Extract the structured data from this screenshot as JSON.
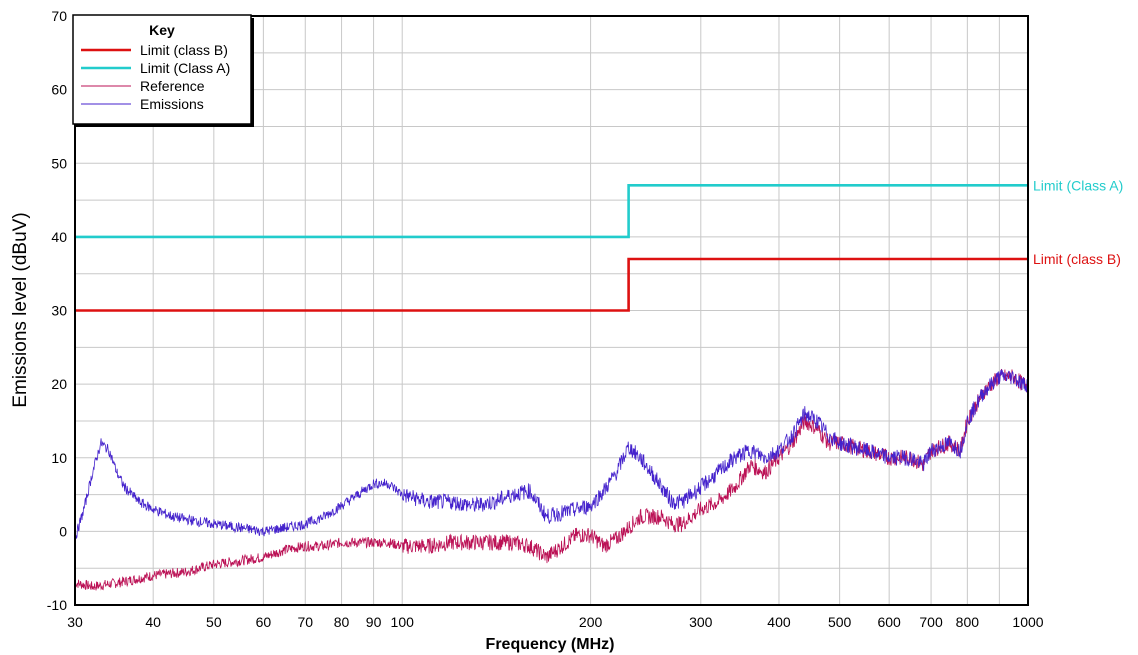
{
  "chart_data": {
    "type": "line",
    "xlabel": "Frequency (MHz)",
    "ylabel": "Emissions level (dBuV)",
    "x_scale": "log",
    "xlim": [
      30,
      1000
    ],
    "ylim": [
      -10,
      70
    ],
    "grid": true,
    "x_ticks": [
      30,
      40,
      50,
      60,
      70,
      80,
      90,
      100,
      200,
      300,
      400,
      500,
      600,
      700,
      800,
      1000
    ],
    "x_tick_labels": [
      "30",
      "40",
      "50",
      "60",
      "70",
      "80",
      "90",
      "100",
      "200",
      "300",
      "400",
      "500",
      "600",
      "700",
      "800",
      "1000"
    ],
    "y_ticks": [
      -10,
      0,
      10,
      20,
      30,
      40,
      50,
      60,
      70
    ],
    "y_tick_labels": [
      "-10",
      "0",
      "10",
      "20",
      "30",
      "40",
      "50",
      "60",
      "70"
    ],
    "legend": {
      "title": "Key",
      "position": "top-left"
    },
    "series": [
      {
        "name": "Limit (class B)",
        "label": "Limit (class B)",
        "color": "#dd1111",
        "style": "step",
        "x": [
          30,
          230,
          230,
          1000
        ],
        "y": [
          30,
          30,
          37,
          37
        ]
      },
      {
        "name": "Limit (Class A)",
        "label": "Limit (Class A)",
        "color": "#22cccc",
        "style": "step",
        "x": [
          30,
          230,
          230,
          1000
        ],
        "y": [
          40,
          40,
          47,
          47
        ]
      },
      {
        "name": "Reference",
        "color": "#bb1155",
        "style": "noisy",
        "x": [
          30,
          32,
          35,
          40,
          45,
          50,
          55,
          60,
          65,
          70,
          75,
          80,
          85,
          90,
          95,
          100,
          110,
          120,
          130,
          140,
          150,
          160,
          170,
          180,
          190,
          200,
          210,
          220,
          230,
          240,
          250,
          260,
          270,
          280,
          290,
          300,
          320,
          340,
          360,
          380,
          400,
          420,
          440,
          460,
          480,
          500,
          550,
          600,
          650,
          680,
          700,
          750,
          780,
          800,
          850,
          900,
          950,
          980,
          1000
        ],
        "y": [
          -7,
          -7.5,
          -7,
          -6,
          -5.5,
          -4.5,
          -4,
          -3.5,
          -2.5,
          -2,
          -2,
          -1.5,
          -1.5,
          -1.5,
          -1.5,
          -2,
          -2,
          -1.5,
          -1.5,
          -1.5,
          -1.5,
          -2,
          -3.5,
          -2,
          -0.5,
          -0.5,
          -2,
          -1,
          0.5,
          2,
          2,
          2,
          1,
          1,
          2,
          3,
          4,
          6,
          9,
          8,
          10,
          12,
          15,
          14,
          12,
          12,
          11,
          10,
          10,
          9,
          11,
          12,
          11,
          15,
          19,
          21,
          21,
          20,
          20
        ]
      },
      {
        "name": "Emissions",
        "color": "#4422cc",
        "style": "noisy",
        "x": [
          30,
          31,
          32,
          33,
          34,
          35,
          36,
          38,
          40,
          43,
          46,
          50,
          55,
          60,
          65,
          70,
          75,
          80,
          85,
          90,
          95,
          100,
          110,
          120,
          130,
          140,
          150,
          160,
          170,
          180,
          190,
          200,
          210,
          220,
          230,
          240,
          250,
          260,
          270,
          280,
          290,
          300,
          320,
          340,
          360,
          380,
          400,
          420,
          440,
          460,
          480,
          500,
          550,
          600,
          650,
          680,
          700,
          750,
          780,
          800,
          850,
          900,
          950,
          980,
          1000
        ],
        "y": [
          -1,
          3,
          8,
          12,
          11,
          8,
          6,
          4,
          3,
          2,
          1.5,
          1,
          0.5,
          0,
          0.5,
          1,
          2,
          3.5,
          5,
          6.5,
          6.5,
          5,
          4,
          4,
          3.5,
          4,
          5,
          5.5,
          2,
          2.5,
          3,
          3.5,
          5.5,
          8,
          11.5,
          10,
          8,
          6,
          4,
          4,
          5,
          6,
          8,
          10,
          11,
          10,
          11,
          13,
          16,
          15,
          13,
          12,
          11,
          10,
          10,
          9,
          11,
          12,
          11,
          15,
          19,
          21,
          21,
          20,
          20
        ]
      }
    ]
  }
}
